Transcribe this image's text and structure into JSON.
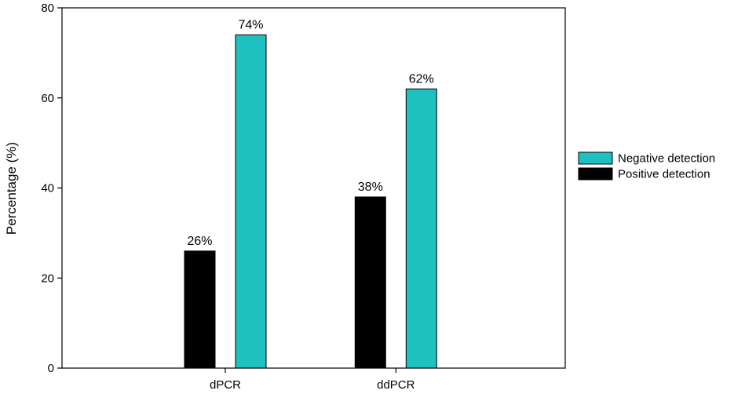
{
  "chart_data": {
    "type": "bar",
    "categories": [
      "dPCR",
      "ddPCR"
    ],
    "series": [
      {
        "name": "Positive detection",
        "values": [
          26,
          38
        ],
        "labels": [
          "26%",
          "38%"
        ],
        "color": "#000000"
      },
      {
        "name": "Negative detection",
        "values": [
          74,
          62
        ],
        "labels": [
          "74%",
          "62%"
        ],
        "color": "#1EC0C0"
      }
    ],
    "title": "",
    "xlabel": "",
    "ylabel": "Percentage (%)",
    "ylim": [
      0,
      80
    ],
    "yticks": [
      0,
      20,
      40,
      60,
      80
    ],
    "grid": false,
    "legend": {
      "placement": "right",
      "order": [
        "Negative detection",
        "Positive detection"
      ]
    }
  }
}
